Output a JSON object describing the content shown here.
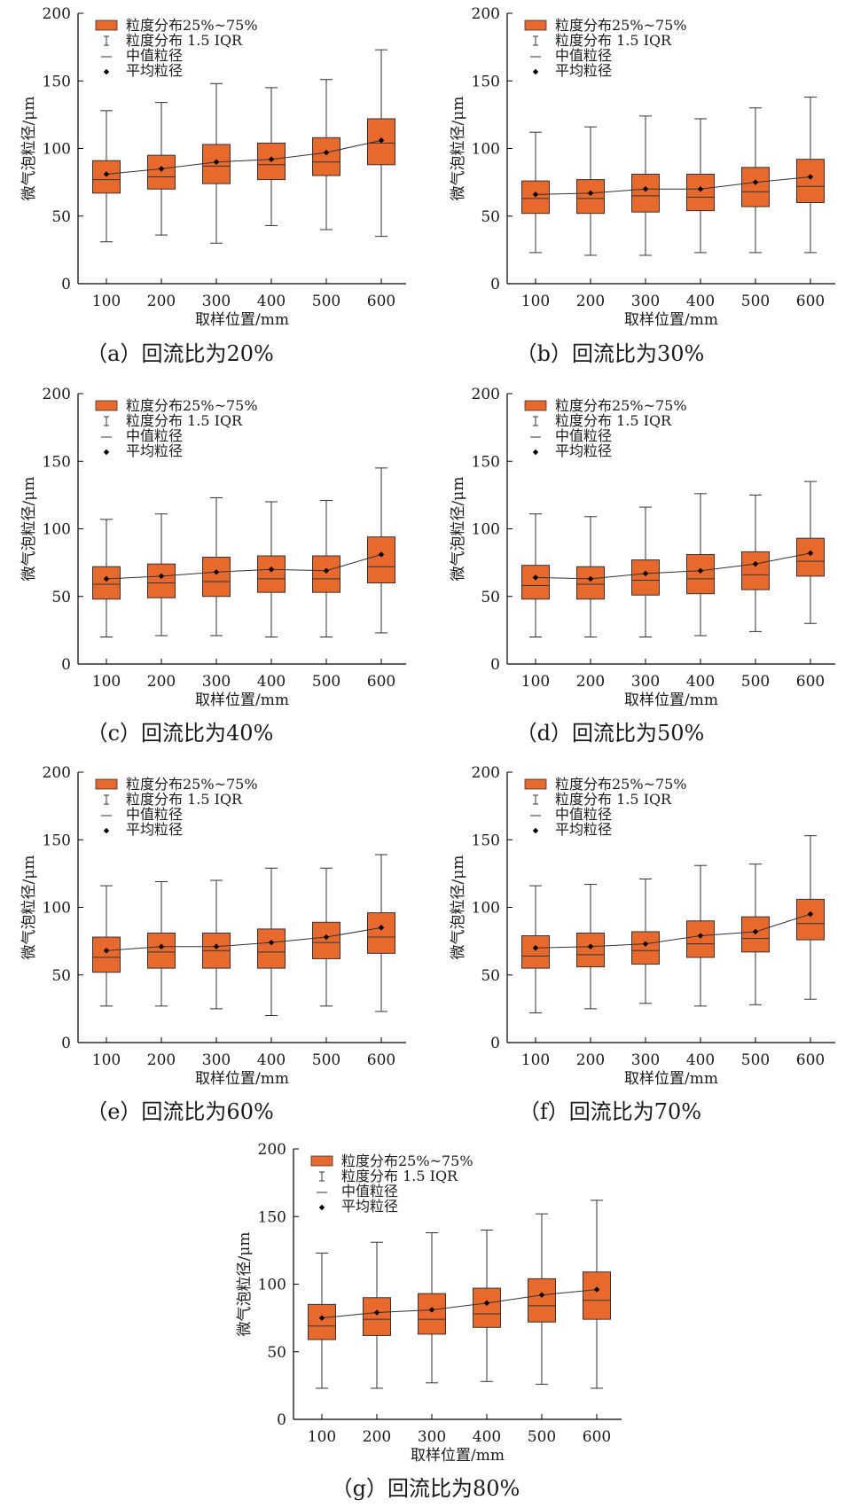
{
  "chart_data": [
    {
      "type": "box",
      "panel": "a",
      "caption": "（a）回流比为20%",
      "categories": [
        "100",
        "200",
        "300",
        "400",
        "500",
        "600"
      ],
      "xlabel": "取样位置/mm",
      "ylabel": "微气泡粒径/μm",
      "ylim": [
        0,
        200
      ],
      "yticks": [
        "0",
        "50",
        "100",
        "150",
        "200"
      ],
      "legend": [
        "粒度分布25%~75%",
        "粒度分布 1.5 IQR",
        "中值粒径",
        "平均粒径"
      ],
      "box_color": "#E8692E",
      "series": [
        {
          "role": "whisker_low",
          "values": [
            31,
            36,
            30,
            43,
            40,
            35
          ]
        },
        {
          "role": "q1",
          "values": [
            67,
            70,
            74,
            77,
            80,
            88
          ]
        },
        {
          "role": "median",
          "values": [
            77,
            79,
            87,
            88,
            90,
            104
          ]
        },
        {
          "role": "q3",
          "values": [
            91,
            95,
            103,
            104,
            108,
            122
          ]
        },
        {
          "role": "whisker_high",
          "values": [
            128,
            134,
            148,
            145,
            151,
            173
          ]
        },
        {
          "role": "mean",
          "values": [
            81,
            85,
            90,
            92,
            97,
            106
          ]
        }
      ]
    },
    {
      "type": "box",
      "panel": "b",
      "caption": "（b）回流比为30%",
      "categories": [
        "100",
        "200",
        "300",
        "400",
        "500",
        "600"
      ],
      "xlabel": "取样位置/mm",
      "ylabel": "微气泡粒径/μm",
      "ylim": [
        0,
        200
      ],
      "yticks": [
        "0",
        "50",
        "100",
        "150",
        "200"
      ],
      "legend": [
        "粒度分布25%~75%",
        "粒度分布 1.5 IQR",
        "中值粒径",
        "平均粒径"
      ],
      "box_color": "#E8692E",
      "series": [
        {
          "role": "whisker_low",
          "values": [
            23,
            21,
            21,
            23,
            23,
            23
          ]
        },
        {
          "role": "q1",
          "values": [
            52,
            52,
            53,
            54,
            57,
            60
          ]
        },
        {
          "role": "median",
          "values": [
            63,
            63,
            65,
            64,
            68,
            72
          ]
        },
        {
          "role": "q3",
          "values": [
            76,
            77,
            81,
            81,
            86,
            92
          ]
        },
        {
          "role": "whisker_high",
          "values": [
            112,
            116,
            124,
            122,
            130,
            138
          ]
        },
        {
          "role": "mean",
          "values": [
            66,
            67,
            70,
            70,
            75,
            79
          ]
        }
      ]
    },
    {
      "type": "box",
      "panel": "c",
      "caption": "（c）回流比为40%",
      "categories": [
        "100",
        "200",
        "300",
        "400",
        "500",
        "600"
      ],
      "xlabel": "取样位置/mm",
      "ylabel": "微气泡粒径/μm",
      "ylim": [
        0,
        200
      ],
      "yticks": [
        "0",
        "50",
        "100",
        "150",
        "200"
      ],
      "legend": [
        "粒度分布25%~75%",
        "粒度分布 1.5 IQR",
        "中值粒径",
        "平均粒径"
      ],
      "box_color": "#E8692E",
      "series": [
        {
          "role": "whisker_low",
          "values": [
            20,
            21,
            21,
            20,
            20,
            23
          ]
        },
        {
          "role": "q1",
          "values": [
            48,
            49,
            50,
            53,
            53,
            60
          ]
        },
        {
          "role": "median",
          "values": [
            59,
            60,
            61,
            63,
            63,
            72
          ]
        },
        {
          "role": "q3",
          "values": [
            72,
            74,
            79,
            80,
            80,
            94
          ]
        },
        {
          "role": "whisker_high",
          "values": [
            107,
            111,
            123,
            120,
            121,
            145
          ]
        },
        {
          "role": "mean",
          "values": [
            63,
            65,
            68,
            70,
            69,
            81
          ]
        }
      ]
    },
    {
      "type": "box",
      "panel": "d",
      "caption": "（d）回流比为50%",
      "categories": [
        "100",
        "200",
        "300",
        "400",
        "500",
        "600"
      ],
      "xlabel": "取样位置/mm",
      "ylabel": "微气泡粒径/μm",
      "ylim": [
        0,
        200
      ],
      "yticks": [
        "0",
        "50",
        "100",
        "150",
        "200"
      ],
      "legend": [
        "粒度分布25%~75%",
        "粒度分布 1.5 IQR",
        "中值粒径",
        "平均粒径"
      ],
      "box_color": "#E8692E",
      "series": [
        {
          "role": "whisker_low",
          "values": [
            20,
            20,
            20,
            21,
            24,
            30
          ]
        },
        {
          "role": "q1",
          "values": [
            48,
            48,
            51,
            52,
            55,
            65
          ]
        },
        {
          "role": "median",
          "values": [
            58,
            59,
            62,
            63,
            66,
            76
          ]
        },
        {
          "role": "q3",
          "values": [
            73,
            72,
            77,
            81,
            83,
            93
          ]
        },
        {
          "role": "whisker_high",
          "values": [
            111,
            109,
            116,
            126,
            125,
            135
          ]
        },
        {
          "role": "mean",
          "values": [
            64,
            63,
            67,
            69,
            74,
            82
          ]
        }
      ]
    },
    {
      "type": "box",
      "panel": "e",
      "caption": "（e）回流比为60%",
      "categories": [
        "100",
        "200",
        "300",
        "400",
        "500",
        "600"
      ],
      "xlabel": "取样位置/mm",
      "ylabel": "微气泡粒径/μm",
      "ylim": [
        0,
        200
      ],
      "yticks": [
        "0",
        "50",
        "100",
        "150",
        "200"
      ],
      "legend": [
        "粒度分布25%~75%",
        "粒度分布 1.5 IQR",
        "中值粒径",
        "平均粒径"
      ],
      "box_color": "#E8692E",
      "series": [
        {
          "role": "whisker_low",
          "values": [
            27,
            27,
            25,
            20,
            27,
            23
          ]
        },
        {
          "role": "q1",
          "values": [
            52,
            55,
            55,
            55,
            62,
            66
          ]
        },
        {
          "role": "median",
          "values": [
            63,
            67,
            68,
            67,
            74,
            78
          ]
        },
        {
          "role": "q3",
          "values": [
            78,
            81,
            81,
            84,
            89,
            96
          ]
        },
        {
          "role": "whisker_high",
          "values": [
            116,
            119,
            120,
            129,
            129,
            139
          ]
        },
        {
          "role": "mean",
          "values": [
            68,
            71,
            71,
            74,
            78,
            85
          ]
        }
      ]
    },
    {
      "type": "box",
      "panel": "f",
      "caption": "（f）回流比为70%",
      "categories": [
        "100",
        "200",
        "300",
        "400",
        "500",
        "600"
      ],
      "xlabel": "取样位置/mm",
      "ylabel": "微气泡粒径/μm",
      "ylim": [
        0,
        200
      ],
      "yticks": [
        "0",
        "50",
        "100",
        "150",
        "200"
      ],
      "legend": [
        "粒度分布25%~75%",
        "粒度分布 1.5 IQR",
        "中值粒径",
        "平均粒径"
      ],
      "box_color": "#E8692E",
      "series": [
        {
          "role": "whisker_low",
          "values": [
            22,
            25,
            29,
            27,
            28,
            32
          ]
        },
        {
          "role": "q1",
          "values": [
            55,
            56,
            58,
            63,
            67,
            76
          ]
        },
        {
          "role": "median",
          "values": [
            64,
            65,
            68,
            73,
            77,
            88
          ]
        },
        {
          "role": "q3",
          "values": [
            79,
            81,
            82,
            90,
            93,
            106
          ]
        },
        {
          "role": "whisker_high",
          "values": [
            116,
            117,
            121,
            131,
            132,
            153
          ]
        },
        {
          "role": "mean",
          "values": [
            70,
            71,
            73,
            79,
            82,
            95
          ]
        }
      ]
    },
    {
      "type": "box",
      "panel": "g",
      "caption": "（g）回流比为80%",
      "categories": [
        "100",
        "200",
        "300",
        "400",
        "500",
        "600"
      ],
      "xlabel": "取样位置/mm",
      "ylabel": "微气泡粒径/μm",
      "ylim": [
        0,
        200
      ],
      "yticks": [
        "0",
        "50",
        "100",
        "150",
        "200"
      ],
      "legend": [
        "粒度分布25%~75%",
        "粒度分布 1.5 IQR",
        "中值粒径",
        "平均粒径"
      ],
      "box_color": "#E8692E",
      "series": [
        {
          "role": "whisker_low",
          "values": [
            23,
            23,
            27,
            28,
            26,
            23
          ]
        },
        {
          "role": "q1",
          "values": [
            59,
            62,
            63,
            68,
            72,
            74
          ]
        },
        {
          "role": "median",
          "values": [
            69,
            74,
            74,
            78,
            84,
            88
          ]
        },
        {
          "role": "q3",
          "values": [
            85,
            90,
            93,
            97,
            104,
            109
          ]
        },
        {
          "role": "whisker_high",
          "values": [
            123,
            131,
            138,
            140,
            152,
            162
          ]
        },
        {
          "role": "mean",
          "values": [
            75,
            79,
            81,
            86,
            92,
            96
          ]
        }
      ]
    }
  ]
}
